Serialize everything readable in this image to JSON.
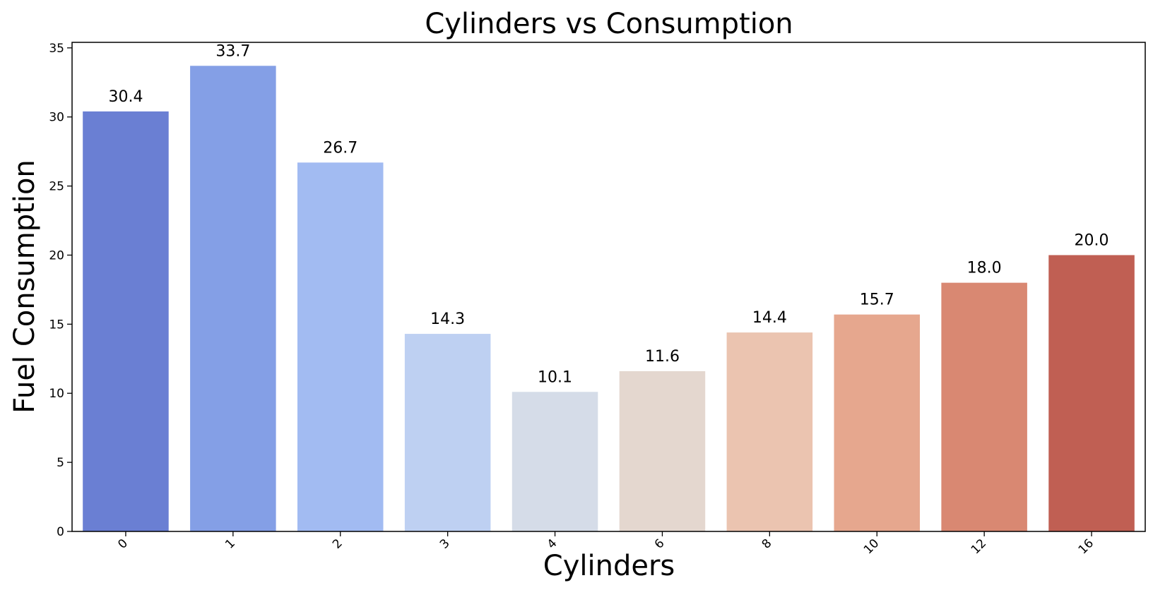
{
  "chart_data": {
    "type": "bar",
    "title": "Cylinders vs Consumption",
    "xlabel": "Cylinders",
    "ylabel": "Fuel Consumption",
    "categories": [
      "0",
      "1",
      "2",
      "3",
      "4",
      "6",
      "8",
      "10",
      "12",
      "16"
    ],
    "values": [
      30.4,
      33.7,
      26.7,
      14.3,
      10.1,
      11.6,
      14.4,
      15.7,
      18.0,
      20.0
    ],
    "value_labels": [
      "30.4",
      "33.7",
      "26.7",
      "14.3",
      "10.1",
      "11.6",
      "14.4",
      "15.7",
      "18.0",
      "20.0"
    ],
    "colors": [
      "#6A7FD3",
      "#849FE6",
      "#A2BBF2",
      "#BED0F2",
      "#D5DCE8",
      "#E4D7CF",
      "#EBC4B0",
      "#E6A78E",
      "#D98872",
      "#C05F53"
    ],
    "ylim": [
      0,
      35.4
    ],
    "yticks": [
      0,
      5,
      10,
      15,
      20,
      25,
      30,
      35
    ],
    "xtick_rotation": 45,
    "grid": false,
    "legend": "none"
  }
}
